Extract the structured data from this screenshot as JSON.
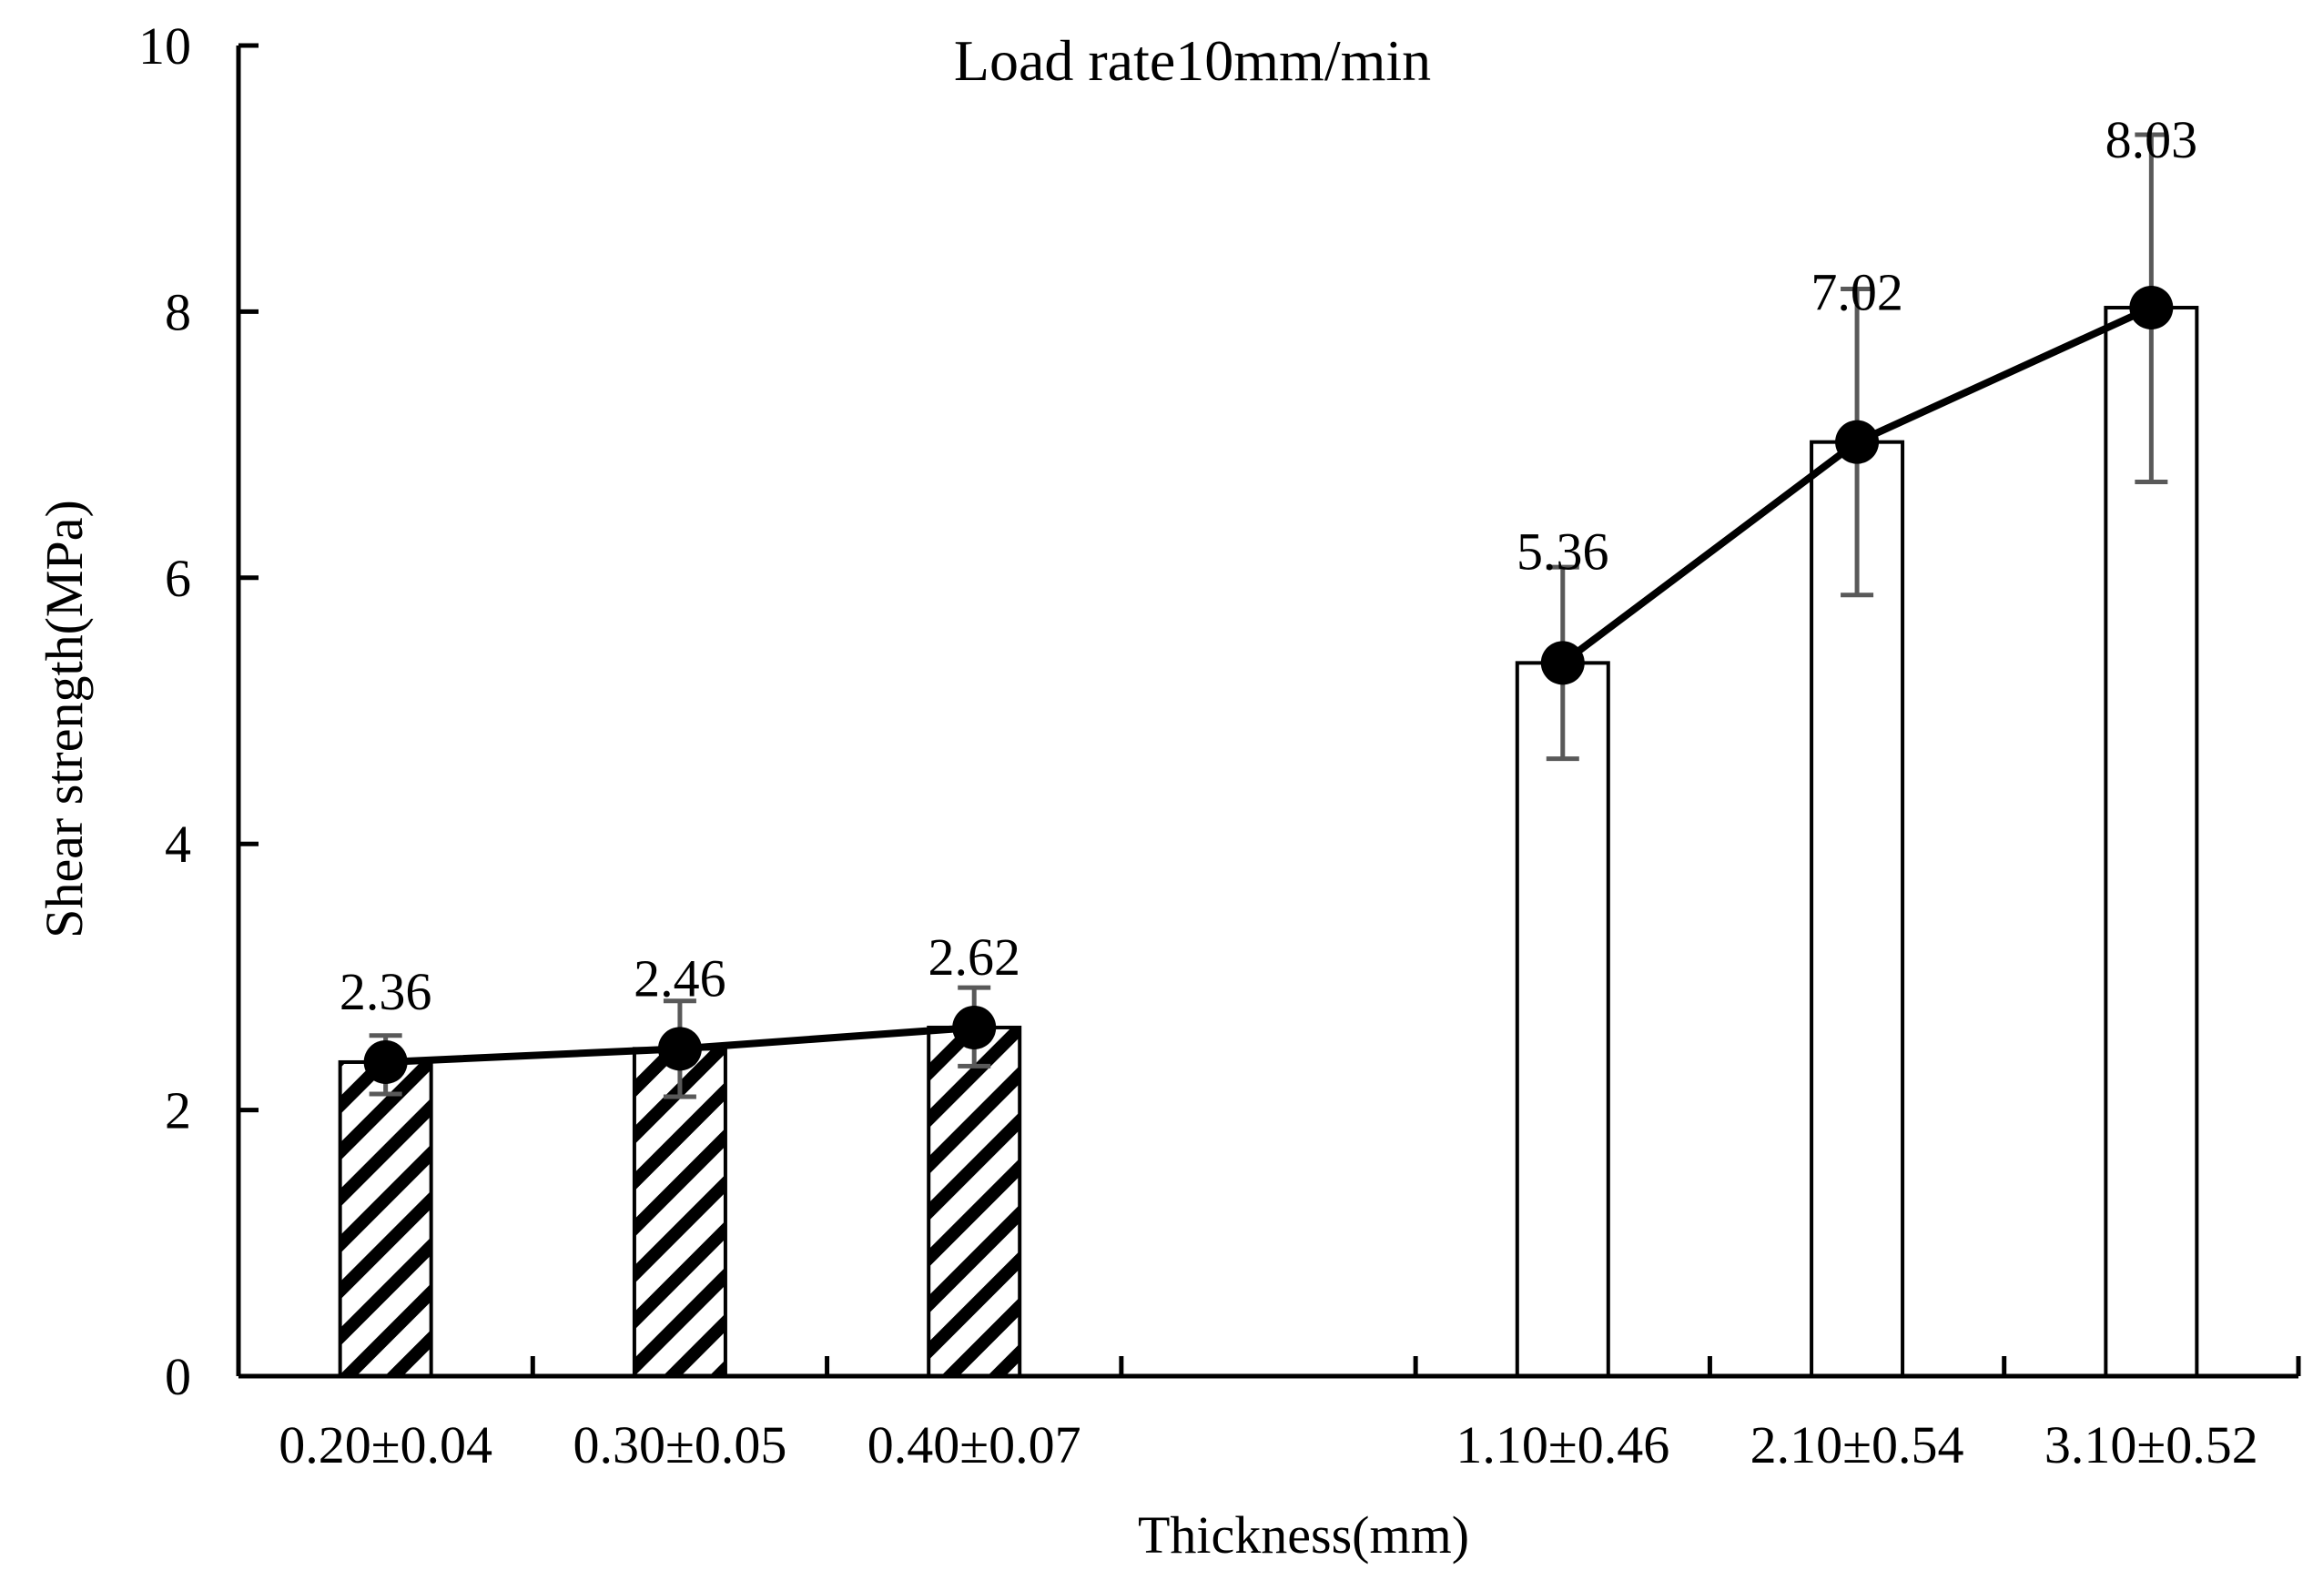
{
  "chart_data": {
    "type": "bar",
    "title": "Load rate10mm/min",
    "xlabel": "Thickness(mm)",
    "ylabel": "Shear strength(MPa)",
    "ylim": [
      0,
      10
    ],
    "yticks": [
      0,
      2,
      4,
      6,
      8,
      10
    ],
    "grid": false,
    "categories": [
      "0.20±0.04",
      "0.30±0.05",
      "0.40±0.07",
      "",
      "1.10±0.46",
      "2.10±0.54",
      "3.10±0.52"
    ],
    "values": [
      2.36,
      2.46,
      2.62,
      null,
      5.36,
      7.02,
      8.03
    ],
    "data_labels": [
      "2.36",
      "2.46",
      "2.62",
      "",
      "5.36",
      "7.02",
      "8.03"
    ],
    "error_bars": [
      {
        "low": 2.12,
        "high": 2.56
      },
      {
        "low": 2.1,
        "high": 2.82
      },
      {
        "low": 2.33,
        "high": 2.92
      },
      null,
      {
        "low": 4.64,
        "high": 6.08
      },
      {
        "low": 5.87,
        "high": 8.17
      },
      {
        "low": 6.72,
        "high": 9.33
      }
    ],
    "bar_styles": [
      "hatched",
      "hatched",
      "hatched",
      "none",
      "plain",
      "plain",
      "plain"
    ],
    "line_series": [
      {
        "name": "thin",
        "indices": [
          0,
          1,
          2
        ]
      },
      {
        "name": "thick",
        "indices": [
          4,
          5,
          6
        ]
      }
    ],
    "colors": {
      "bar_edge": "#000000",
      "error_bar": "#595959",
      "line": "#000000",
      "marker": "#000000",
      "background": "#ffffff"
    }
  }
}
